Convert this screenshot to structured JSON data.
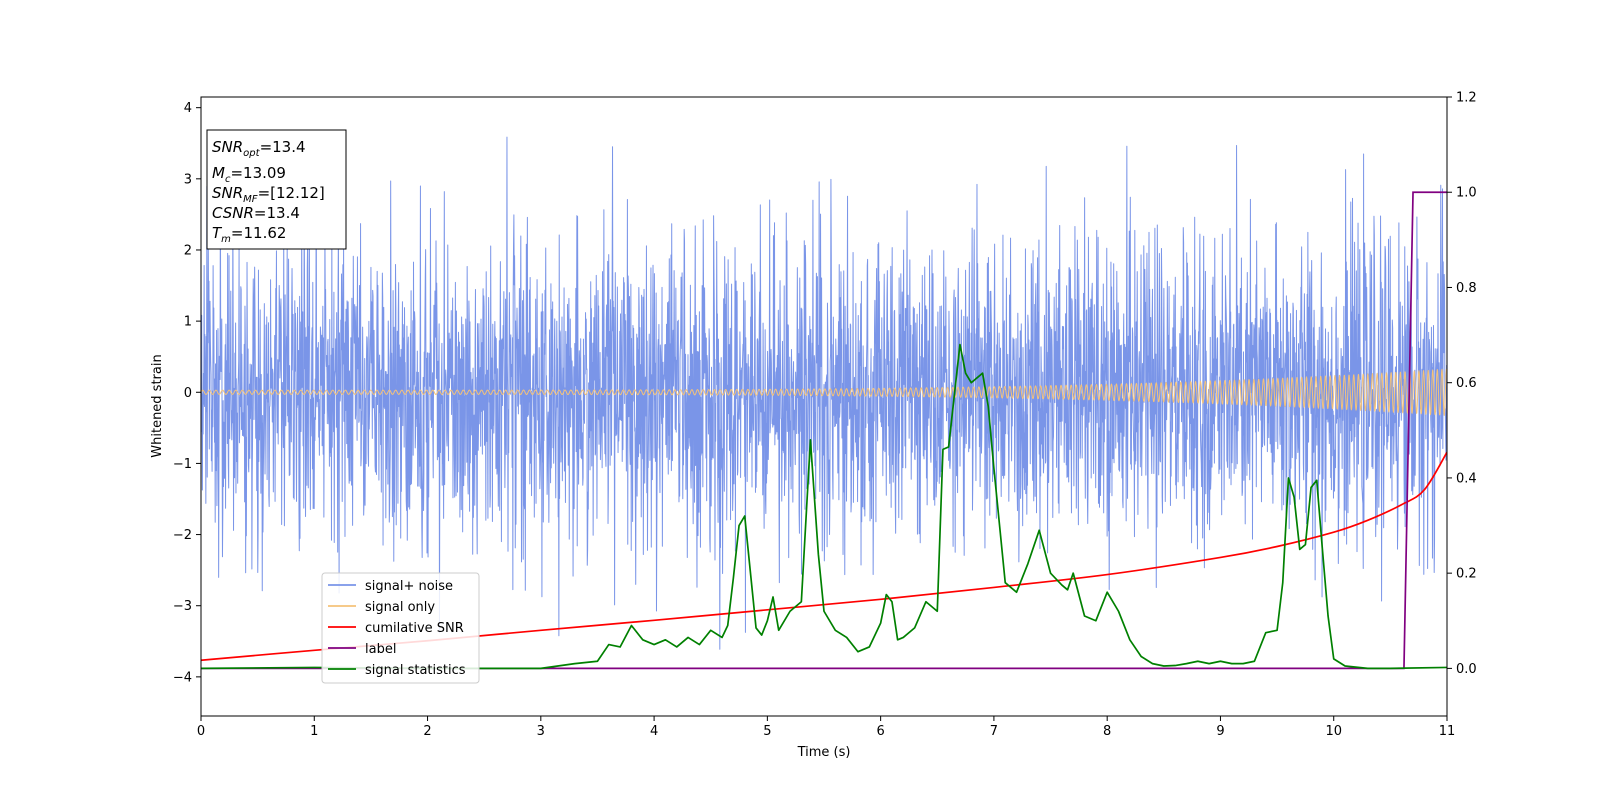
{
  "chart_data": {
    "type": "line",
    "xlabel": "Time (s)",
    "ylabel": "Whitened strain",
    "xlim": [
      0,
      11
    ],
    "ylim_left": [
      -4.55,
      4.15
    ],
    "ylim_right": [
      -0.1,
      1.2
    ],
    "x_ticks": [
      0,
      1,
      2,
      3,
      4,
      5,
      6,
      7,
      8,
      9,
      10,
      11
    ],
    "y_ticks_left": [
      -4,
      -3,
      -2,
      -1,
      0,
      1,
      2,
      3,
      4
    ],
    "y_ticks_right": [
      0.0,
      0.2,
      0.4,
      0.6,
      0.8,
      1.0,
      1.2
    ],
    "info_box": {
      "snr_opt": {
        "main": "SNR",
        "sub": "opt",
        "value": "=13.4"
      },
      "mc": {
        "main": "M",
        "sub": "c",
        "value": "=13.09"
      },
      "snr_mf": {
        "main": "SNR",
        "sub": "MF",
        "value": "=[12.12]"
      },
      "csnr": {
        "main": "CSNR",
        "value": "=13.4"
      },
      "tm": {
        "main": "T",
        "sub": "m",
        "value": "=11.62"
      }
    },
    "legend": {
      "location": "lower-left",
      "entries": [
        "signal+ noise",
        "signal only",
        "cumilative SNR",
        "label",
        "signal statistics"
      ]
    },
    "series": [
      {
        "name": "signal+ noise",
        "axis": "left",
        "color": "#7a95e8",
        "kind": "noise",
        "x_range": [
          0,
          11
        ],
        "typical_range": [
          -2.0,
          2.0
        ],
        "extreme_range": [
          -3.9,
          3.75
        ]
      },
      {
        "name": "signal only",
        "axis": "left",
        "color": "#f4c27a",
        "kind": "chirp",
        "x_range": [
          0,
          11
        ],
        "amplitude_start": 0.03,
        "amplitude_end": 0.33
      },
      {
        "name": "cumilative SNR",
        "axis": "right",
        "color": "#ff0000",
        "x": [
          0,
          1,
          2,
          3,
          4,
          5,
          6,
          7,
          8,
          9,
          9.5,
          10,
          10.3,
          10.6,
          10.8,
          11
        ],
        "y": [
          0.017,
          0.038,
          0.058,
          0.08,
          0.101,
          0.123,
          0.145,
          0.17,
          0.197,
          0.233,
          0.256,
          0.286,
          0.311,
          0.344,
          0.375,
          0.454
        ]
      },
      {
        "name": "label",
        "axis": "right",
        "color": "#800080",
        "x": [
          0,
          10.62,
          10.7,
          11
        ],
        "y": [
          0.0,
          0.0,
          1.0,
          1.0
        ]
      },
      {
        "name": "signal statistics",
        "axis": "right",
        "color": "#008000",
        "x": [
          0,
          1,
          2,
          3,
          3.3,
          3.5,
          3.6,
          3.7,
          3.8,
          3.9,
          4.0,
          4.1,
          4.2,
          4.3,
          4.4,
          4.5,
          4.6,
          4.65,
          4.7,
          4.75,
          4.8,
          4.9,
          4.95,
          5.0,
          5.05,
          5.1,
          5.2,
          5.3,
          5.38,
          5.45,
          5.5,
          5.6,
          5.7,
          5.8,
          5.9,
          6.0,
          6.05,
          6.1,
          6.15,
          6.2,
          6.3,
          6.4,
          6.5,
          6.55,
          6.6,
          6.7,
          6.75,
          6.8,
          6.9,
          6.95,
          7.0,
          7.05,
          7.1,
          7.2,
          7.3,
          7.4,
          7.5,
          7.6,
          7.65,
          7.7,
          7.8,
          7.9,
          8.0,
          8.1,
          8.2,
          8.3,
          8.4,
          8.5,
          8.6,
          8.7,
          8.8,
          8.9,
          9.0,
          9.1,
          9.2,
          9.3,
          9.4,
          9.5,
          9.55,
          9.6,
          9.65,
          9.7,
          9.75,
          9.8,
          9.85,
          9.9,
          9.95,
          10.0,
          10.1,
          10.3,
          10.5,
          11
        ],
        "y": [
          0.0,
          0.002,
          0.0,
          0.0,
          0.01,
          0.015,
          0.05,
          0.045,
          0.09,
          0.06,
          0.05,
          0.06,
          0.045,
          0.065,
          0.05,
          0.08,
          0.065,
          0.09,
          0.19,
          0.3,
          0.32,
          0.085,
          0.07,
          0.1,
          0.15,
          0.08,
          0.12,
          0.14,
          0.48,
          0.24,
          0.12,
          0.08,
          0.065,
          0.035,
          0.045,
          0.095,
          0.155,
          0.14,
          0.06,
          0.065,
          0.085,
          0.14,
          0.12,
          0.46,
          0.465,
          0.68,
          0.62,
          0.6,
          0.62,
          0.55,
          0.42,
          0.3,
          0.18,
          0.16,
          0.22,
          0.29,
          0.2,
          0.175,
          0.165,
          0.2,
          0.11,
          0.1,
          0.16,
          0.12,
          0.06,
          0.025,
          0.01,
          0.005,
          0.006,
          0.01,
          0.015,
          0.01,
          0.015,
          0.01,
          0.01,
          0.015,
          0.075,
          0.08,
          0.18,
          0.4,
          0.36,
          0.25,
          0.26,
          0.38,
          0.395,
          0.25,
          0.11,
          0.02,
          0.005,
          0.0,
          0.0,
          0.002
        ]
      }
    ]
  }
}
